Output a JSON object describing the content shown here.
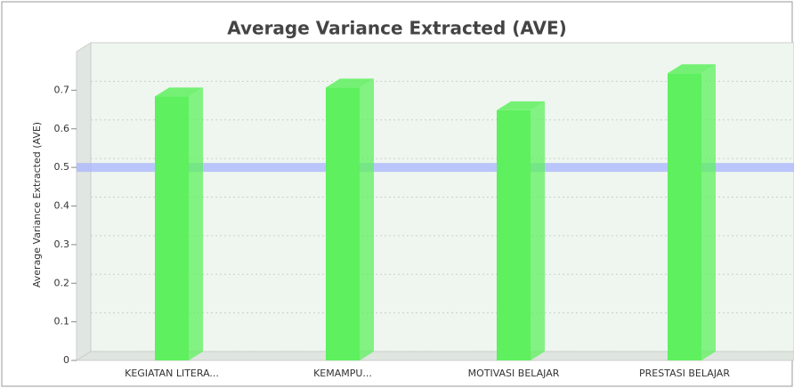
{
  "chart_data": {
    "type": "bar",
    "title": "Average Variance Extracted (AVE)",
    "y_label": "Average Variance Extracted (AVE)",
    "categories": [
      "KEGIATAN LITERA...",
      "KEMAMPU...",
      "MOTIVASI BELAJAR",
      "PRESTASI BELAJAR"
    ],
    "values": [
      0.684,
      0.707,
      0.648,
      0.744
    ],
    "color": "#5ef05e",
    "reference_line": 0.5,
    "reference_color": "#a8b4ff",
    "ylim": [
      0,
      0.8
    ],
    "yticks": [
      0,
      0.1,
      0.2,
      0.3,
      0.4,
      0.5,
      0.6,
      0.7
    ],
    "grid": true
  }
}
